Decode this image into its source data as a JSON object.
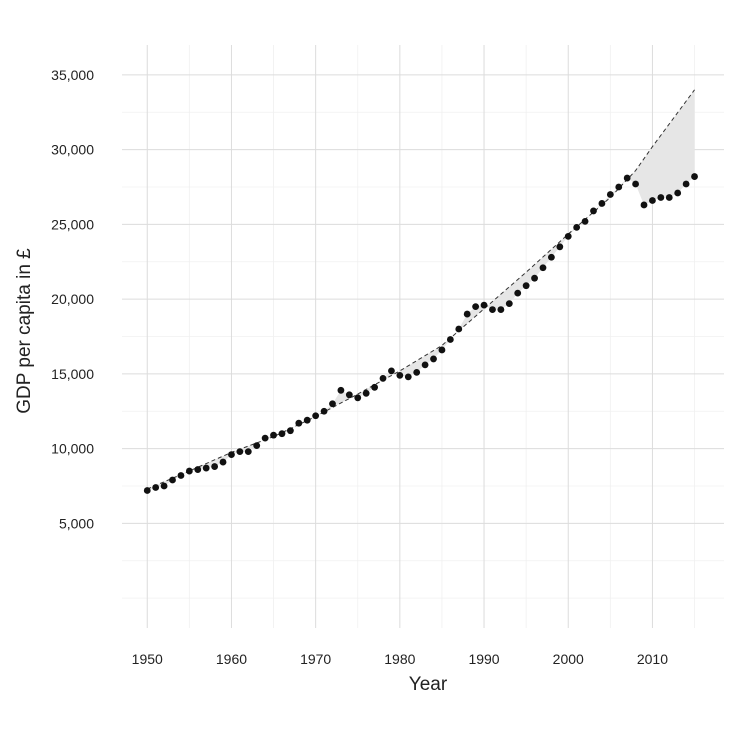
{
  "chart_data": {
    "type": "scatter",
    "title": "",
    "xlabel": "Year",
    "ylabel": "GDP per capita in £",
    "xlim": [
      1947,
      2018.5
    ],
    "ylim": [
      -2000,
      37000
    ],
    "x_ticks": [
      1950,
      1960,
      1970,
      1980,
      1990,
      2000,
      2010
    ],
    "x_tick_labels": [
      "1950",
      "1960",
      "1970",
      "1980",
      "1990",
      "2000",
      "2010"
    ],
    "y_ticks": [
      5000,
      10000,
      15000,
      20000,
      25000,
      30000,
      35000
    ],
    "y_tick_labels": [
      "5,000",
      "10,000",
      "15,000",
      "20,000",
      "25,000",
      "30,000",
      "35,000"
    ],
    "grid": true,
    "legend": "none",
    "series": [
      {
        "values": [
          [
            1950,
            7200
          ],
          [
            1951,
            7400
          ],
          [
            1952,
            7500
          ],
          [
            1953,
            7900
          ],
          [
            1954,
            8200
          ],
          [
            1955,
            8500
          ],
          [
            1956,
            8600
          ],
          [
            1957,
            8700
          ],
          [
            1958,
            8800
          ],
          [
            1959,
            9100
          ],
          [
            1960,
            9600
          ],
          [
            1961,
            9800
          ],
          [
            1962,
            9800
          ],
          [
            1963,
            10200
          ],
          [
            1964,
            10700
          ],
          [
            1965,
            10900
          ],
          [
            1966,
            11000
          ],
          [
            1967,
            11200
          ],
          [
            1968,
            11700
          ],
          [
            1969,
            11900
          ],
          [
            1970,
            12200
          ],
          [
            1971,
            12500
          ],
          [
            1972,
            13000
          ],
          [
            1973,
            13900
          ],
          [
            1974,
            13600
          ],
          [
            1975,
            13400
          ],
          [
            1976,
            13700
          ],
          [
            1977,
            14100
          ],
          [
            1978,
            14700
          ],
          [
            1979,
            15200
          ],
          [
            1980,
            14900
          ],
          [
            1981,
            14800
          ],
          [
            1982,
            15100
          ],
          [
            1983,
            15600
          ],
          [
            1984,
            16000
          ],
          [
            1985,
            16600
          ],
          [
            1986,
            17300
          ],
          [
            1987,
            18000
          ],
          [
            1988,
            19000
          ],
          [
            1989,
            19500
          ],
          [
            1990,
            19600
          ],
          [
            1991,
            19300
          ],
          [
            1992,
            19300
          ],
          [
            1993,
            19700
          ],
          [
            1994,
            20400
          ],
          [
            1995,
            20900
          ],
          [
            1996,
            21400
          ],
          [
            1997,
            22100
          ],
          [
            1998,
            22800
          ],
          [
            1999,
            23500
          ],
          [
            2000,
            24200
          ],
          [
            2001,
            24800
          ],
          [
            2002,
            25200
          ],
          [
            2003,
            25900
          ],
          [
            2004,
            26400
          ],
          [
            2005,
            27000
          ],
          [
            2006,
            27500
          ],
          [
            2007,
            28100
          ],
          [
            2008,
            27700
          ],
          [
            2009,
            26300
          ],
          [
            2010,
            26600
          ],
          [
            2011,
            26800
          ],
          [
            2012,
            26800
          ],
          [
            2013,
            27100
          ],
          [
            2014,
            27700
          ],
          [
            2015,
            28200
          ]
        ]
      }
    ],
    "trend_line": {
      "style": "dashed",
      "values": [
        [
          1950,
          7300
        ],
        [
          1955,
          8500
        ],
        [
          1960,
          9750
        ],
        [
          1965,
          10800
        ],
        [
          1970,
          12150
        ],
        [
          1975,
          13650
        ],
        [
          1980,
          15200
        ],
        [
          1985,
          16900
        ],
        [
          1990,
          19350
        ],
        [
          1995,
          21800
        ],
        [
          2000,
          24350
        ],
        [
          2005,
          26800
        ],
        [
          2008,
          28600
        ],
        [
          2010,
          30200
        ],
        [
          2015,
          34000
        ]
      ]
    },
    "shaded_region": "area between observed points and dashed trend line"
  }
}
